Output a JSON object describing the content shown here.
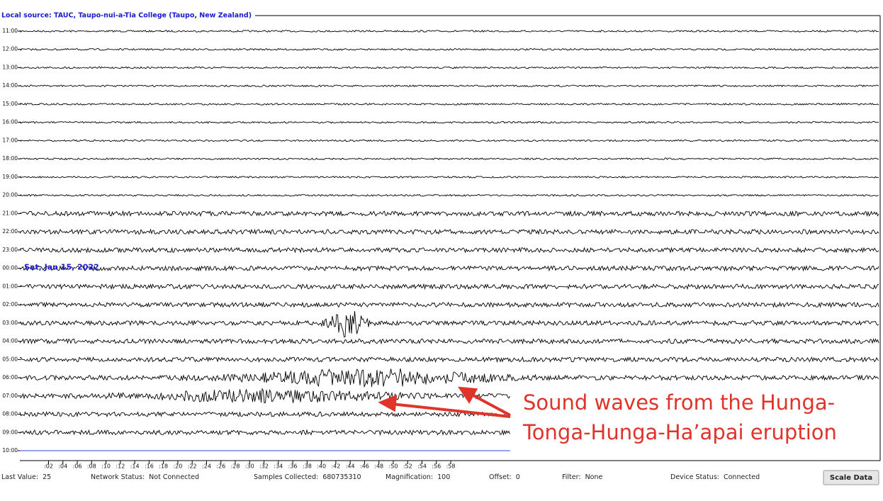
{
  "header": {
    "title": "Local source: TAUC, Taupo-nui-a-Tia College (Taupo, New Zealand)"
  },
  "plot": {
    "hours": [
      "11:00",
      "12:00",
      "13:00",
      "14:00",
      "15:00",
      "16:00",
      "17:00",
      "18:00",
      "19:00",
      "20:00",
      "21:00",
      "22:00",
      "23:00",
      "00:00",
      "01:00",
      "02:00",
      "03:00",
      "04:00",
      "05:00",
      "06:00",
      "07:00",
      "08:00",
      "09:00",
      "10:00"
    ],
    "date_label": "Sat, Jan 15, 2022",
    "minutes": [
      ":02",
      ":04",
      ":06",
      ":08",
      ":10",
      ":12",
      ":14",
      ":16",
      ":18",
      ":20",
      ":22",
      ":24",
      ":26",
      ":28",
      ":30",
      ":32",
      ":34",
      ":36",
      ":38",
      ":40",
      ":42",
      ":44",
      ":46",
      ":48",
      ":50",
      ":52",
      ":54",
      ":56",
      ":58"
    ]
  },
  "annotation": {
    "lines": [
      "Sound waves from the Hunga-",
      "Tonga-Hunga-Ha’apai eruption"
    ]
  },
  "status": [
    {
      "label": "Last Value:",
      "value": "25"
    },
    {
      "label": "Network Status:",
      "value": "Not Connected"
    },
    {
      "label": "Samples Collected:",
      "value": "680735310"
    },
    {
      "label": "Magnification:",
      "value": "100"
    },
    {
      "label": "Offset:",
      "value": "0"
    },
    {
      "label": "Filter:",
      "value": "None"
    },
    {
      "label": "Device Status:",
      "value": "Connected"
    }
  ],
  "button": "Scale Data"
}
